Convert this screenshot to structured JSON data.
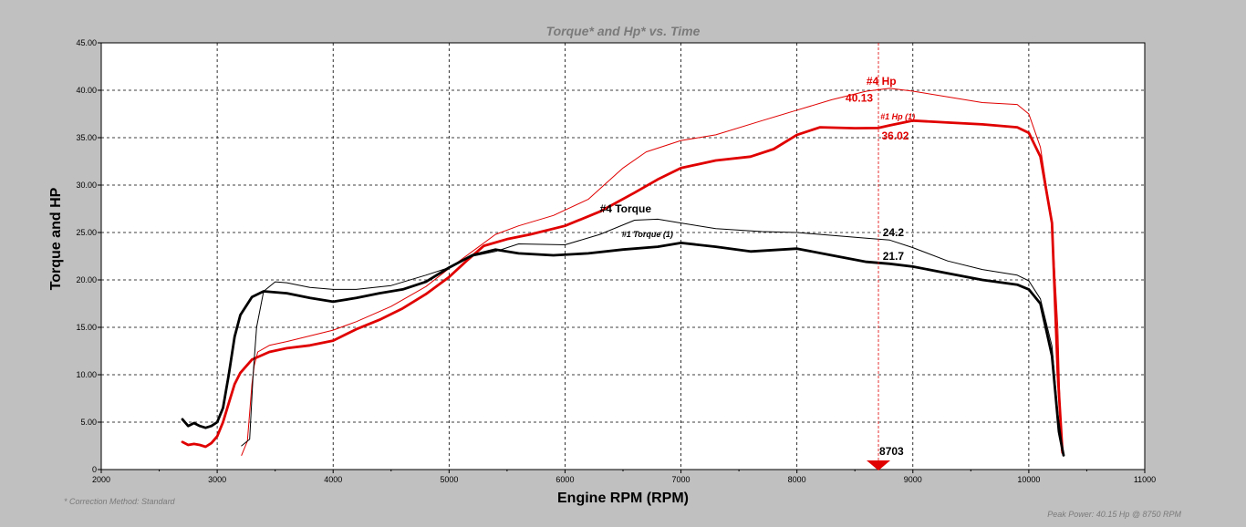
{
  "chart_data": {
    "type": "line",
    "title": "Torque* and Hp* vs. Time",
    "xlabel": "Engine RPM (RPM)",
    "ylabel": "Torque and HP",
    "xlim": [
      2000,
      11000
    ],
    "ylim": [
      0,
      45
    ],
    "x_ticks": [
      "2000",
      "3000",
      "4000",
      "5000",
      "6000",
      "7000",
      "8000",
      "9000",
      "10000",
      "11000"
    ],
    "y_ticks": [
      "0",
      "5.00",
      "10.00",
      "15.00",
      "20.00",
      "25.00",
      "30.00",
      "35.00",
      "40.00",
      "45.00"
    ],
    "grid": true,
    "footnote_left": "* Correction Method: Standard",
    "footnote_right": "Peak Power: 40.15 Hp @ 8750 RPM",
    "cursor": {
      "x": 8703,
      "label": "8703",
      "color": "#e00000"
    },
    "series": [
      {
        "name": "#4 Hp",
        "color": "#e00000",
        "weight": "thin",
        "points": [
          [
            3210,
            1.5
          ],
          [
            3260,
            3
          ],
          [
            3300,
            9
          ],
          [
            3320,
            11
          ],
          [
            3350,
            12.4
          ],
          [
            3450,
            13.1
          ],
          [
            3600,
            13.5
          ],
          [
            4000,
            14.7
          ],
          [
            4200,
            15.6
          ],
          [
            4500,
            17.2
          ],
          [
            4800,
            19.3
          ],
          [
            5000,
            21.2
          ],
          [
            5200,
            23
          ],
          [
            5400,
            24.8
          ],
          [
            5600,
            25.7
          ],
          [
            5900,
            26.8
          ],
          [
            6200,
            28.5
          ],
          [
            6500,
            31.8
          ],
          [
            6700,
            33.5
          ],
          [
            7000,
            34.7
          ],
          [
            7300,
            35.3
          ],
          [
            7700,
            36.8
          ],
          [
            8000,
            37.9
          ],
          [
            8300,
            39
          ],
          [
            8600,
            39.9
          ],
          [
            8800,
            40.2
          ],
          [
            9000,
            39.9
          ],
          [
            9300,
            39.3
          ],
          [
            9600,
            38.7
          ],
          [
            9900,
            38.5
          ],
          [
            10000,
            37.5
          ],
          [
            10100,
            34
          ],
          [
            10200,
            26
          ],
          [
            10250,
            15
          ],
          [
            10280,
            2
          ]
        ]
      },
      {
        "name": "#1 Hp (1)",
        "color": "#e00000",
        "weight": "thick",
        "points": [
          [
            2700,
            2.9
          ],
          [
            2750,
            2.6
          ],
          [
            2800,
            2.7
          ],
          [
            2850,
            2.6
          ],
          [
            2900,
            2.4
          ],
          [
            2950,
            2.8
          ],
          [
            3000,
            3.5
          ],
          [
            3050,
            5
          ],
          [
            3100,
            7
          ],
          [
            3150,
            9
          ],
          [
            3200,
            10.2
          ],
          [
            3300,
            11.6
          ],
          [
            3450,
            12.4
          ],
          [
            3600,
            12.8
          ],
          [
            3800,
            13.1
          ],
          [
            4000,
            13.6
          ],
          [
            4200,
            14.8
          ],
          [
            4400,
            15.8
          ],
          [
            4600,
            17
          ],
          [
            4800,
            18.5
          ],
          [
            5000,
            20.3
          ],
          [
            5150,
            22
          ],
          [
            5300,
            23.6
          ],
          [
            5500,
            24.3
          ],
          [
            5700,
            24.8
          ],
          [
            6000,
            25.7
          ],
          [
            6300,
            27.2
          ],
          [
            6600,
            29.2
          ],
          [
            6800,
            30.6
          ],
          [
            7000,
            31.8
          ],
          [
            7300,
            32.6
          ],
          [
            7600,
            33
          ],
          [
            7800,
            33.8
          ],
          [
            8000,
            35.3
          ],
          [
            8200,
            36.1
          ],
          [
            8500,
            36
          ],
          [
            8700,
            36.02
          ],
          [
            8800,
            36.3
          ],
          [
            9000,
            36.8
          ],
          [
            9300,
            36.6
          ],
          [
            9600,
            36.4
          ],
          [
            9900,
            36.1
          ],
          [
            10000,
            35.5
          ],
          [
            10100,
            33
          ],
          [
            10200,
            26
          ],
          [
            10250,
            10
          ],
          [
            10290,
            1.8
          ]
        ]
      },
      {
        "name": "#4 Torque",
        "color": "#000000",
        "weight": "thin",
        "points": [
          [
            3210,
            2.5
          ],
          [
            3280,
            3.2
          ],
          [
            3310,
            10
          ],
          [
            3340,
            15
          ],
          [
            3400,
            18.8
          ],
          [
            3500,
            19.8
          ],
          [
            3600,
            19.7
          ],
          [
            3800,
            19.2
          ],
          [
            4000,
            19
          ],
          [
            4200,
            19
          ],
          [
            4500,
            19.4
          ],
          [
            4800,
            20.5
          ],
          [
            5000,
            21.3
          ],
          [
            5200,
            22.5
          ],
          [
            5400,
            23
          ],
          [
            5600,
            23.8
          ],
          [
            6000,
            23.7
          ],
          [
            6300,
            24.8
          ],
          [
            6600,
            26.3
          ],
          [
            6800,
            26.4
          ],
          [
            7000,
            26
          ],
          [
            7300,
            25.4
          ],
          [
            7700,
            25.1
          ],
          [
            8000,
            25
          ],
          [
            8300,
            24.7
          ],
          [
            8600,
            24.4
          ],
          [
            8800,
            24.2
          ],
          [
            9000,
            23.4
          ],
          [
            9300,
            22
          ],
          [
            9600,
            21.1
          ],
          [
            9900,
            20.5
          ],
          [
            10000,
            19.9
          ],
          [
            10100,
            18
          ],
          [
            10200,
            13
          ],
          [
            10250,
            6
          ],
          [
            10300,
            1.5
          ]
        ]
      },
      {
        "name": "#1 Torque (1)",
        "color": "#000000",
        "weight": "thick",
        "points": [
          [
            2700,
            5.3
          ],
          [
            2750,
            4.6
          ],
          [
            2800,
            4.9
          ],
          [
            2850,
            4.6
          ],
          [
            2900,
            4.4
          ],
          [
            2950,
            4.6
          ],
          [
            3000,
            5
          ],
          [
            3050,
            6.5
          ],
          [
            3100,
            10
          ],
          [
            3150,
            14
          ],
          [
            3200,
            16.3
          ],
          [
            3300,
            18.2
          ],
          [
            3400,
            18.8
          ],
          [
            3600,
            18.6
          ],
          [
            3800,
            18.1
          ],
          [
            4000,
            17.7
          ],
          [
            4200,
            18.1
          ],
          [
            4400,
            18.6
          ],
          [
            4600,
            19
          ],
          [
            4800,
            19.8
          ],
          [
            5000,
            21.3
          ],
          [
            5200,
            22.6
          ],
          [
            5400,
            23.2
          ],
          [
            5600,
            22.8
          ],
          [
            5900,
            22.6
          ],
          [
            6200,
            22.8
          ],
          [
            6500,
            23.2
          ],
          [
            6800,
            23.5
          ],
          [
            7000,
            23.9
          ],
          [
            7300,
            23.5
          ],
          [
            7600,
            23
          ],
          [
            8000,
            23.3
          ],
          [
            8300,
            22.6
          ],
          [
            8600,
            21.9
          ],
          [
            8800,
            21.7
          ],
          [
            9000,
            21.4
          ],
          [
            9300,
            20.7
          ],
          [
            9600,
            20
          ],
          [
            9900,
            19.5
          ],
          [
            10000,
            19
          ],
          [
            10100,
            17.5
          ],
          [
            10200,
            12
          ],
          [
            10260,
            4
          ],
          [
            10300,
            1.5
          ]
        ]
      }
    ],
    "annotations": [
      {
        "text": "#4 Hp",
        "x": 8600,
        "y": 40.6,
        "color": "#e00000",
        "size": "normal"
      },
      {
        "text": "40.13",
        "x": 8420,
        "y": 38.8,
        "color": "#e00000",
        "size": "normal"
      },
      {
        "text": "#1 Hp (1)",
        "x": 8720,
        "y": 36.9,
        "color": "#e00000",
        "size": "small"
      },
      {
        "text": "36.02",
        "x": 8730,
        "y": 34.8,
        "color": "#e00000",
        "size": "normal"
      },
      {
        "text": "#4 Torque",
        "x": 6300,
        "y": 27.1,
        "color": "#000000",
        "size": "normal"
      },
      {
        "text": "#1 Torque (1)",
        "x": 6490,
        "y": 24.5,
        "color": "#000000",
        "size": "small"
      },
      {
        "text": "24.2",
        "x": 8740,
        "y": 24.6,
        "color": "#000000",
        "size": "normal"
      },
      {
        "text": "21.7",
        "x": 8740,
        "y": 22.1,
        "color": "#000000",
        "size": "normal"
      }
    ]
  }
}
